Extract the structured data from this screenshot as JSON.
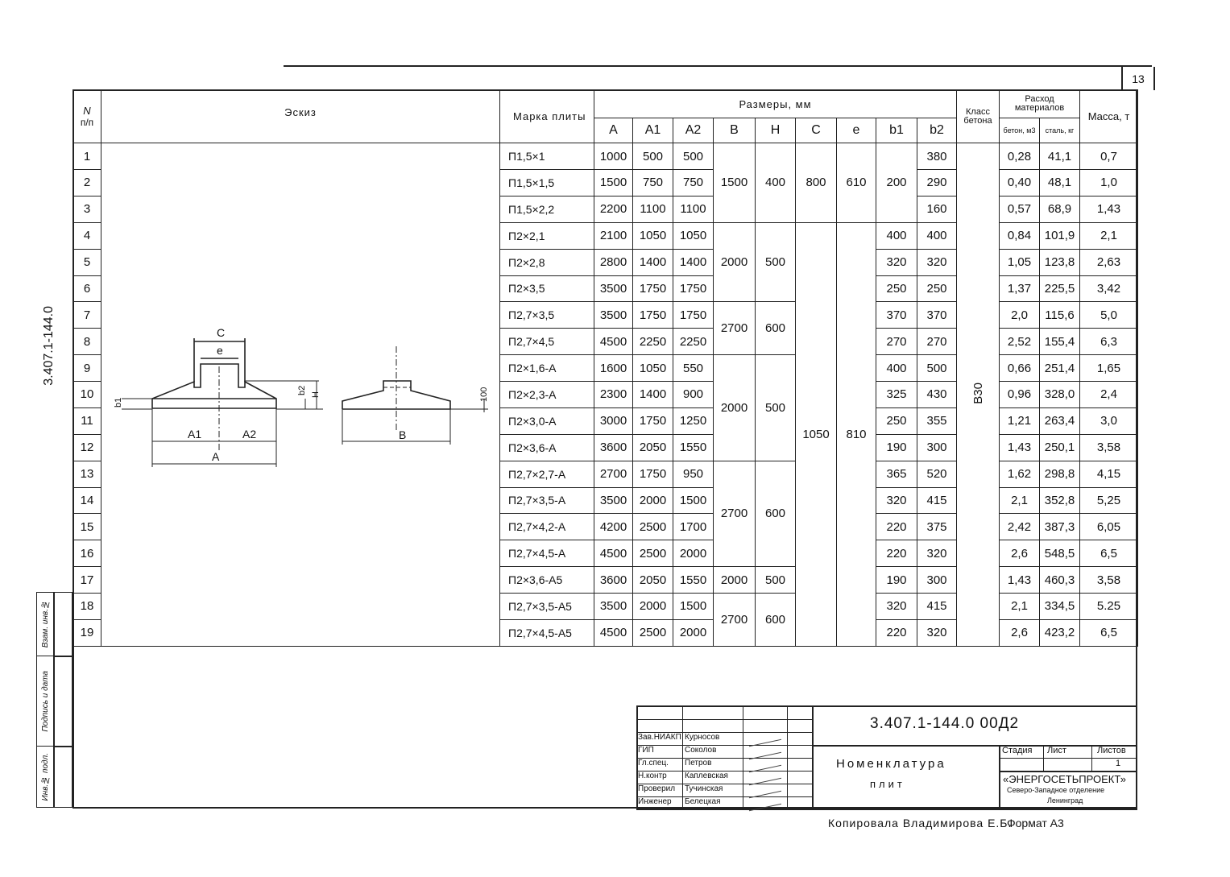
{
  "sheet": {
    "page_number": "13",
    "side_code": "3.407.1-144.0"
  },
  "header": {
    "n": "N",
    "n_sub": "п/п",
    "sketch": "Эскиз",
    "mark": "Марка плиты",
    "dims": "Размеры, мм",
    "cols": [
      "A",
      "A1",
      "A2",
      "B",
      "H",
      "C",
      "e",
      "b1",
      "b2"
    ],
    "class": "Класс бетона",
    "consumption": "Расход материалов",
    "concrete": "бетон, м3",
    "steel": "сталь, кг",
    "mass": "Масса, т"
  },
  "sketch": {
    "labels": {
      "c": "C",
      "e": "e",
      "b1": "b1",
      "b2": "b2",
      "h": "H",
      "a1": "A1",
      "a2": "A2",
      "a": "A",
      "b": "B",
      "t100": "100"
    }
  },
  "rows": [
    {
      "n": "1",
      "mark": "П1,5×1",
      "A": "1000",
      "A1": "500",
      "A2": "500",
      "b1": "",
      "b2": "380",
      "concrete": "0,28",
      "steel": "41,1",
      "mass": "0,7"
    },
    {
      "n": "2",
      "mark": "П1,5×1,5",
      "A": "1500",
      "A1": "750",
      "A2": "750",
      "b1": "",
      "b2": "290",
      "concrete": "0,40",
      "steel": "48,1",
      "mass": "1,0"
    },
    {
      "n": "3",
      "mark": "П1,5×2,2",
      "A": "2200",
      "A1": "1100",
      "A2": "1100",
      "b1": "",
      "b2": "160",
      "concrete": "0,57",
      "steel": "68,9",
      "mass": "1,43"
    },
    {
      "n": "4",
      "mark": "П2×2,1",
      "A": "2100",
      "A1": "1050",
      "A2": "1050",
      "b1": "400",
      "b2": "400",
      "concrete": "0,84",
      "steel": "101,9",
      "mass": "2,1"
    },
    {
      "n": "5",
      "mark": "П2×2,8",
      "A": "2800",
      "A1": "1400",
      "A2": "1400",
      "b1": "320",
      "b2": "320",
      "concrete": "1,05",
      "steel": "123,8",
      "mass": "2,63"
    },
    {
      "n": "6",
      "mark": "П2×3,5",
      "A": "3500",
      "A1": "1750",
      "A2": "1750",
      "b1": "250",
      "b2": "250",
      "concrete": "1,37",
      "steel": "225,5",
      "mass": "3,42"
    },
    {
      "n": "7",
      "mark": "П2,7×3,5",
      "A": "3500",
      "A1": "1750",
      "A2": "1750",
      "b1": "370",
      "b2": "370",
      "concrete": "2,0",
      "steel": "115,6",
      "mass": "5,0"
    },
    {
      "n": "8",
      "mark": "П2,7×4,5",
      "A": "4500",
      "A1": "2250",
      "A2": "2250",
      "b1": "270",
      "b2": "270",
      "concrete": "2,52",
      "steel": "155,4",
      "mass": "6,3"
    },
    {
      "n": "9",
      "mark": "П2×1,6-А",
      "A": "1600",
      "A1": "1050",
      "A2": "550",
      "b1": "400",
      "b2": "500",
      "concrete": "0,66",
      "steel": "251,4",
      "mass": "1,65"
    },
    {
      "n": "10",
      "mark": "П2×2,3-А",
      "A": "2300",
      "A1": "1400",
      "A2": "900",
      "b1": "325",
      "b2": "430",
      "concrete": "0,96",
      "steel": "328,0",
      "mass": "2,4"
    },
    {
      "n": "11",
      "mark": "П2×3,0-А",
      "A": "3000",
      "A1": "1750",
      "A2": "1250",
      "b1": "250",
      "b2": "355",
      "concrete": "1,21",
      "steel": "263,4",
      "mass": "3,0"
    },
    {
      "n": "12",
      "mark": "П2×3,6-А",
      "A": "3600",
      "A1": "2050",
      "A2": "1550",
      "b1": "190",
      "b2": "300",
      "concrete": "1,43",
      "steel": "250,1",
      "mass": "3,58"
    },
    {
      "n": "13",
      "mark": "П2,7×2,7-А",
      "A": "2700",
      "A1": "1750",
      "A2": "950",
      "b1": "365",
      "b2": "520",
      "concrete": "1,62",
      "steel": "298,8",
      "mass": "4,15"
    },
    {
      "n": "14",
      "mark": "П2,7×3,5-А",
      "A": "3500",
      "A1": "2000",
      "A2": "1500",
      "b1": "320",
      "b2": "415",
      "concrete": "2,1",
      "steel": "352,8",
      "mass": "5,25"
    },
    {
      "n": "15",
      "mark": "П2,7×4,2-А",
      "A": "4200",
      "A1": "2500",
      "A2": "1700",
      "b1": "220",
      "b2": "375",
      "concrete": "2,42",
      "steel": "387,3",
      "mass": "6,05"
    },
    {
      "n": "16",
      "mark": "П2,7×4,5-А",
      "A": "4500",
      "A1": "2500",
      "A2": "2000",
      "b1": "220",
      "b2": "320",
      "concrete": "2,6",
      "steel": "548,5",
      "mass": "6,5"
    },
    {
      "n": "17",
      "mark": "П2×3,6-А5",
      "A": "3600",
      "A1": "2050",
      "A2": "1550",
      "b1": "190",
      "b2": "300",
      "concrete": "1,43",
      "steel": "460,3",
      "mass": "3,58"
    },
    {
      "n": "18",
      "mark": "П2,7×3,5-А5",
      "A": "3500",
      "A1": "2000",
      "A2": "1500",
      "b1": "320",
      "b2": "415",
      "concrete": "2,1",
      "steel": "334,5",
      "mass": "5.25"
    },
    {
      "n": "19",
      "mark": "П2,7×4,5-А5",
      "A": "4500",
      "A1": "2500",
      "A2": "2000",
      "b1": "220",
      "b2": "320",
      "concrete": "2,6",
      "steel": "423,2",
      "mass": "6,5"
    }
  ],
  "groups": {
    "BH": [
      {
        "rows": 3,
        "B": "1500",
        "H": "400"
      },
      {
        "rows": 3,
        "B": "2000",
        "H": "500"
      },
      {
        "rows": 2,
        "B": "2700",
        "H": "600"
      },
      {
        "rows": 4,
        "B": "2000",
        "H": "500"
      },
      {
        "rows": 4,
        "B": "2700",
        "H": "600"
      },
      {
        "rows": 1,
        "B": "2000",
        "H": "500"
      },
      {
        "rows": 2,
        "B": "2700",
        "H": "600"
      }
    ],
    "Ce": [
      {
        "rows": 3,
        "C": "800",
        "e": "610"
      },
      {
        "rows": 16,
        "C": "1050",
        "e": "810"
      }
    ],
    "b1_first": {
      "rows": 3,
      "value": "200"
    },
    "class": "В30"
  },
  "stamp": [
    "Инв.№ подл.",
    "Подпись и дата",
    "Взам. инв.№"
  ],
  "title_block": {
    "doc_number": "3.407.1-144.0  00Д2",
    "title_line1": "Номенклатура",
    "title_line2": "плит",
    "stage_label": "Стадия",
    "sheet_label": "Лист",
    "sheets_label": "Листов",
    "sheets_value": "1",
    "org_name": "«ЭНЕРГОСЕТЬПРОЕКТ»",
    "org_branch": "Северо-Западное отделение",
    "org_city": "Ленинград",
    "people": [
      {
        "role": "Зав.НИАКП",
        "name": "Курносов"
      },
      {
        "role": "ГИП",
        "name": "Соколов"
      },
      {
        "role": "Гл.спец.",
        "name": "Петров"
      },
      {
        "role": "Н.контр",
        "name": "Каплевская"
      },
      {
        "role": "Проверил",
        "name": "Тучинская"
      },
      {
        "role": "Инженер",
        "name": "Белецкая"
      }
    ]
  },
  "footer": {
    "copied": "Копировала Владимирова Е.Б.",
    "format": "Формат А3"
  }
}
